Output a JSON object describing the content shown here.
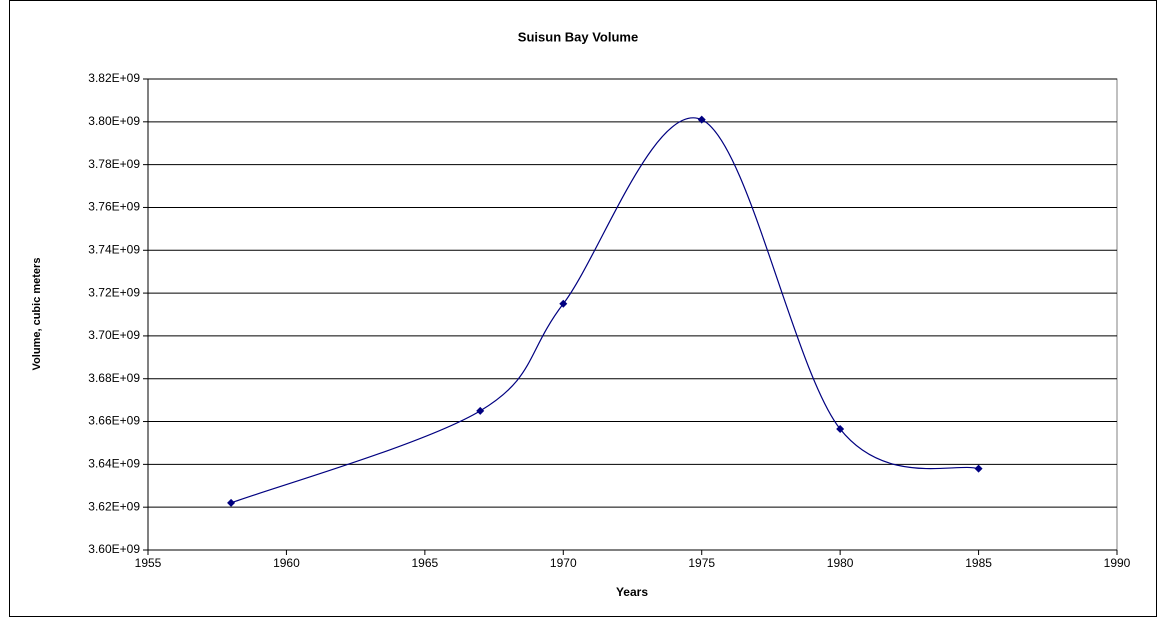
{
  "chart_data": {
    "type": "scatter",
    "smooth": true,
    "title": "Suisun Bay Volume",
    "x_label": "Years",
    "y_label": "Volume, cubic meters",
    "x": [
      1958,
      1967,
      1970,
      1975,
      1980,
      1985
    ],
    "values": [
      3622000000,
      3665000000,
      3715000000,
      3801000000,
      3656500000,
      3638000000
    ],
    "color": "#000080",
    "xlim": [
      1955,
      1990
    ],
    "xticks": [
      1955,
      1960,
      1965,
      1970,
      1975,
      1980,
      1985,
      1990
    ],
    "ylim": [
      3600000000,
      3820000000
    ],
    "yticks": [
      {
        "value": 3600000000,
        "label": "3.60E+09"
      },
      {
        "value": 3620000000,
        "label": "3.62E+09"
      },
      {
        "value": 3640000000,
        "label": "3.64E+09"
      },
      {
        "value": 3660000000,
        "label": "3.66E+09"
      },
      {
        "value": 3680000000,
        "label": "3.68E+09"
      },
      {
        "value": 3700000000,
        "label": "3.70E+09"
      },
      {
        "value": 3720000000,
        "label": "3.72E+09"
      },
      {
        "value": 3740000000,
        "label": "3.74E+09"
      },
      {
        "value": 3760000000,
        "label": "3.76E+09"
      },
      {
        "value": 3780000000,
        "label": "3.78E+09"
      },
      {
        "value": 3800000000,
        "label": "3.80E+09"
      },
      {
        "value": 3820000000,
        "label": "3.82E+09"
      }
    ],
    "grid": true
  }
}
